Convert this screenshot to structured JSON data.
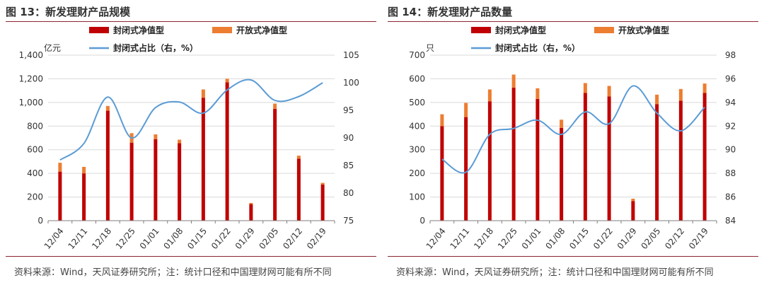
{
  "charts": [
    {
      "title": "图 13：新发理财产品规模",
      "source": "资料来源：Wind，天风证券研究所；注：统计口径和中国理财网可能有所不同",
      "unit_label": "亿元",
      "legend": {
        "closed": "封闭式净值型",
        "open": "开放式净值型",
        "ratio": "封闭式占比（右，%）"
      }
    },
    {
      "title": "图 14：新发理财产品数量",
      "source": "资料来源：Wind，天风证券研究所；注：统计口径和中国理财网可能有所不同",
      "unit_label": "只",
      "legend": {
        "closed": "封闭式净值型",
        "open": "开放式净值型",
        "ratio": "封闭式占比（右，%）"
      }
    }
  ],
  "colors": {
    "closed": "#c00000",
    "open": "#ed7d31",
    "ratio": "#5b9bd5",
    "title_rule": "#8c2630"
  },
  "chart_data": [
    {
      "type": "bar",
      "stacked": true,
      "title": "图 13：新发理财产品规模",
      "categories": [
        "12/04",
        "12/11",
        "12/18",
        "12/25",
        "01/01",
        "01/08",
        "01/15",
        "01/22",
        "01/29",
        "02/05",
        "02/12",
        "02/19"
      ],
      "series": [
        {
          "name": "封闭式净值型",
          "type": "bar",
          "axis": "left",
          "values": [
            415,
            400,
            930,
            660,
            690,
            655,
            1040,
            1170,
            140,
            945,
            525,
            305
          ]
        },
        {
          "name": "开放式净值型",
          "type": "bar",
          "axis": "left",
          "values": [
            75,
            55,
            40,
            80,
            40,
            30,
            70,
            30,
            10,
            45,
            25,
            15
          ]
        },
        {
          "name": "封闭式占比（右，%）",
          "type": "line",
          "axis": "right",
          "values": [
            86,
            89,
            97.4,
            90,
            95.5,
            96.5,
            94.5,
            98.7,
            100.5,
            96.8,
            97.5,
            100
          ]
        }
      ],
      "ylabel": "亿元",
      "ylim": [
        0,
        1400
      ],
      "yticks": [
        0,
        200,
        400,
        600,
        800,
        1000,
        1200,
        1400
      ],
      "ytick_labels": [
        "0",
        "200",
        "400",
        "600",
        "800",
        "1,000",
        "1,200",
        "1,400"
      ],
      "y2lim": [
        75,
        105
      ],
      "y2ticks": [
        75,
        80,
        85,
        90,
        95,
        100,
        105
      ],
      "grid": true,
      "legend_position": "top"
    },
    {
      "type": "bar",
      "stacked": true,
      "title": "图 14：新发理财产品数量",
      "categories": [
        "12/04",
        "12/11",
        "12/18",
        "12/25",
        "01/01",
        "01/08",
        "01/15",
        "01/22",
        "01/29",
        "02/05",
        "02/12",
        "02/19"
      ],
      "series": [
        {
          "name": "封闭式净值型",
          "type": "bar",
          "axis": "left",
          "values": [
            400,
            438,
            505,
            563,
            515,
            392,
            540,
            525,
            83,
            493,
            507,
            540
          ]
        },
        {
          "name": "开放式净值型",
          "type": "bar",
          "axis": "left",
          "values": [
            50,
            60,
            50,
            55,
            45,
            35,
            42,
            45,
            10,
            40,
            50,
            40
          ]
        },
        {
          "name": "封闭式占比（右，%）",
          "type": "line",
          "axis": "right",
          "values": [
            89.2,
            88.1,
            91.3,
            91.8,
            92.5,
            91.3,
            93.2,
            92.2,
            95.4,
            93.1,
            91.6,
            93.6
          ]
        }
      ],
      "ylabel": "只",
      "ylim": [
        0,
        700
      ],
      "yticks": [
        0,
        100,
        200,
        300,
        400,
        500,
        600,
        700
      ],
      "ytick_labels": [
        "0",
        "100",
        "200",
        "300",
        "400",
        "500",
        "600",
        "700"
      ],
      "y2lim": [
        84,
        98
      ],
      "y2ticks": [
        84,
        86,
        88,
        90,
        92,
        94,
        96,
        98
      ],
      "grid": true,
      "legend_position": "top"
    }
  ]
}
